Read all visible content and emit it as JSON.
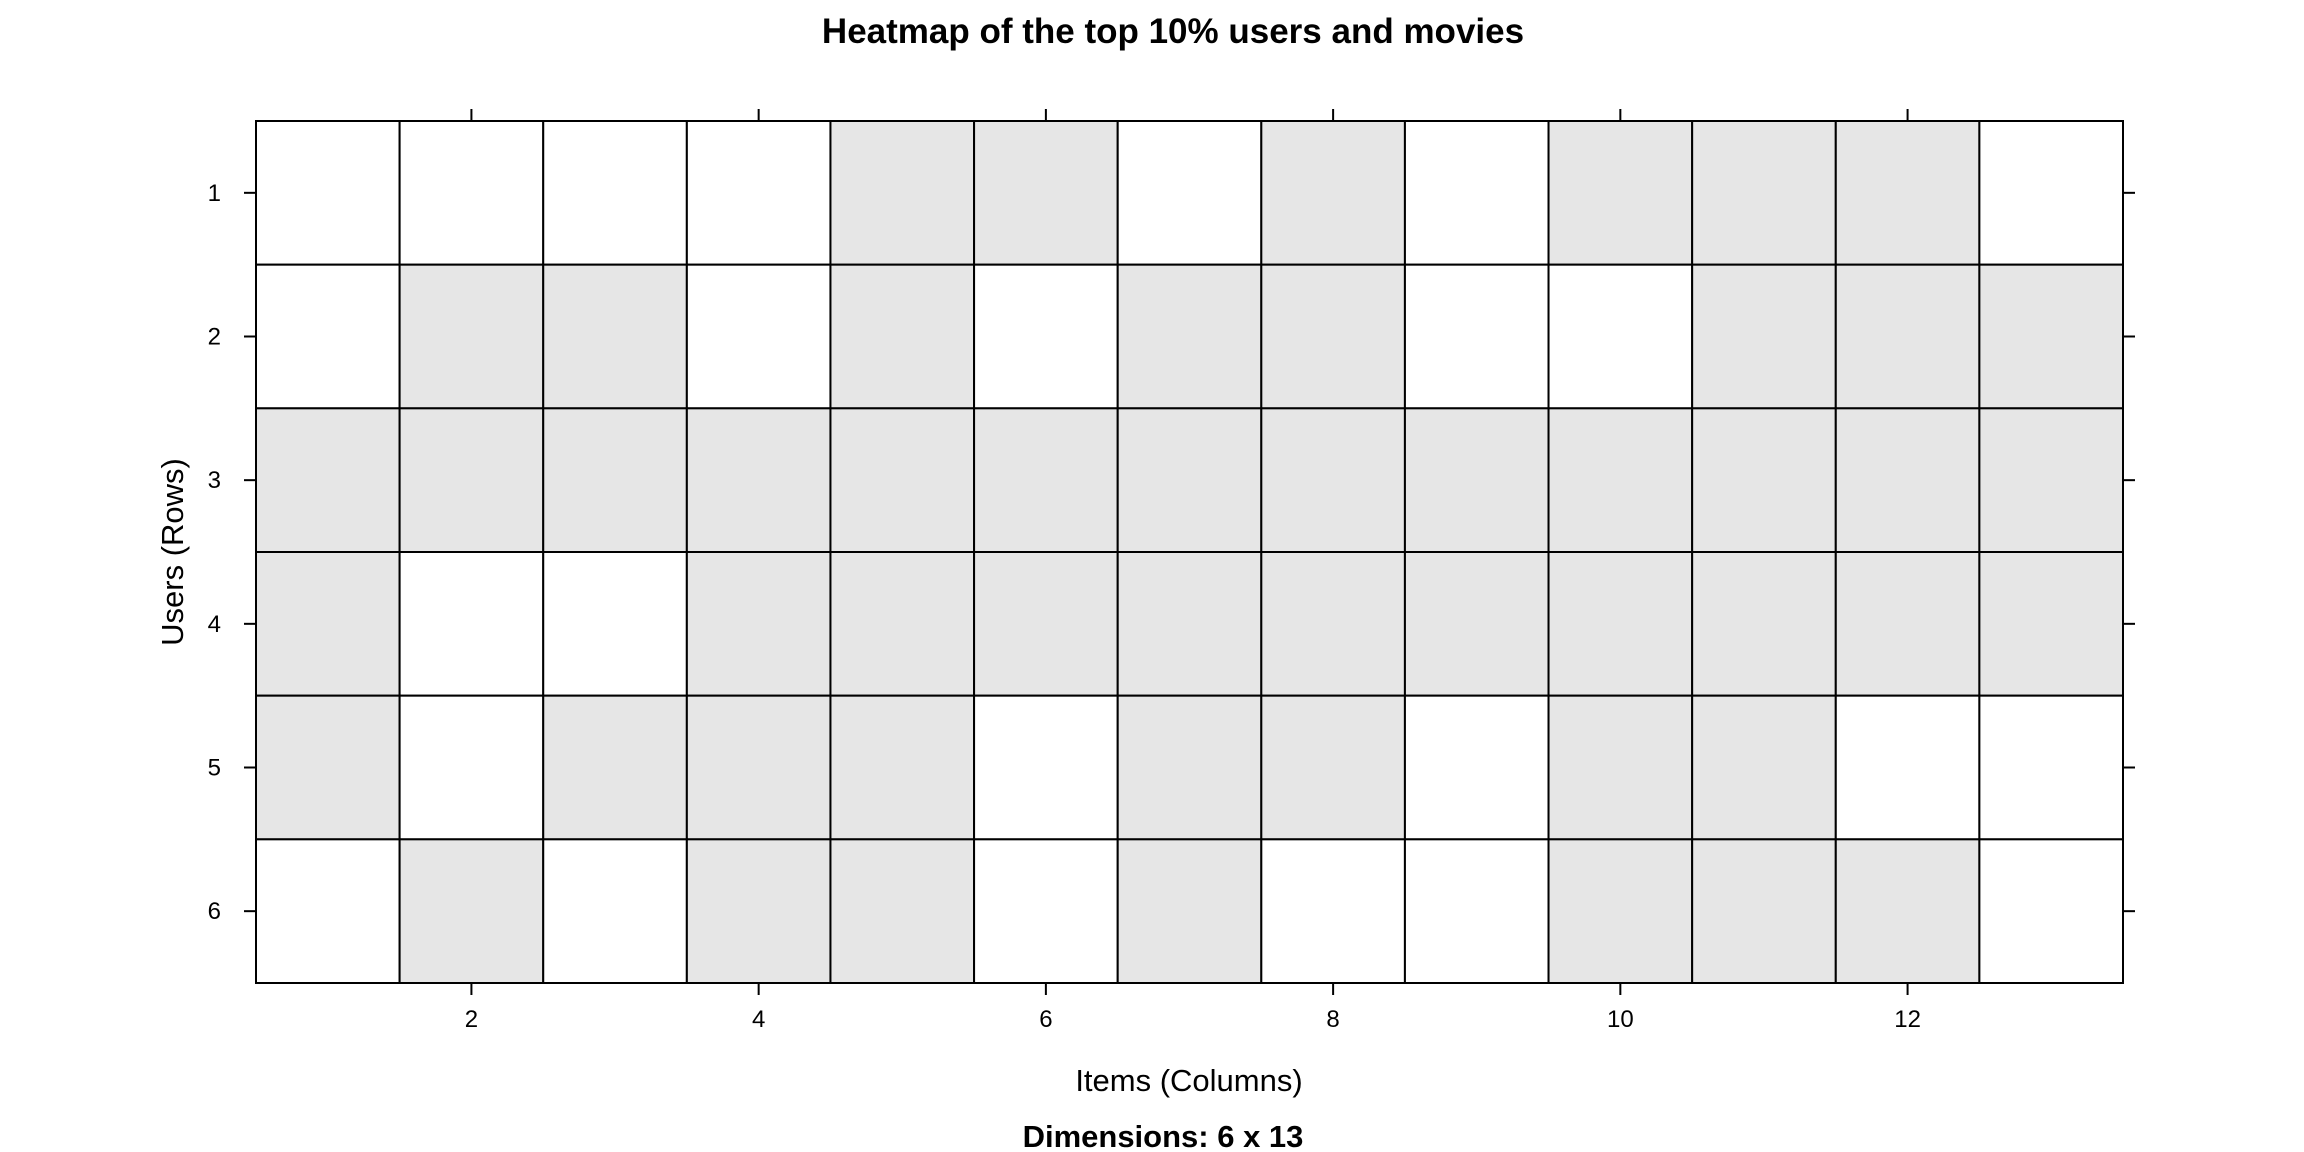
{
  "chart_data": {
    "type": "heatmap",
    "title": "Heatmap of the top 10% users and movies",
    "subtitle": "Dimensions: 6 x 13",
    "xlabel": "Items (Columns)",
    "ylabel": "Users (Rows)",
    "n_rows": 6,
    "n_cols": 13,
    "x_ticks": [
      2,
      4,
      6,
      8,
      10,
      12
    ],
    "y_ticks": [
      1,
      2,
      3,
      4,
      5,
      6
    ],
    "matrix": [
      [
        0,
        0,
        0,
        0,
        1,
        1,
        0,
        1,
        0,
        1,
        1,
        1,
        0
      ],
      [
        0,
        1,
        1,
        0,
        1,
        0,
        1,
        1,
        0,
        0,
        1,
        1,
        1
      ],
      [
        1,
        1,
        1,
        1,
        1,
        1,
        1,
        1,
        1,
        1,
        1,
        1,
        1
      ],
      [
        1,
        0,
        0,
        1,
        1,
        1,
        1,
        1,
        1,
        1,
        1,
        1,
        1
      ],
      [
        1,
        0,
        1,
        1,
        1,
        0,
        1,
        1,
        0,
        1,
        1,
        0,
        0
      ],
      [
        0,
        1,
        0,
        1,
        1,
        0,
        1,
        0,
        0,
        1,
        1,
        1,
        0
      ]
    ],
    "colors": {
      "filled": "#e6e6e6",
      "empty": "#ffffff",
      "border": "#000000"
    },
    "grid": false,
    "legend": "none"
  }
}
